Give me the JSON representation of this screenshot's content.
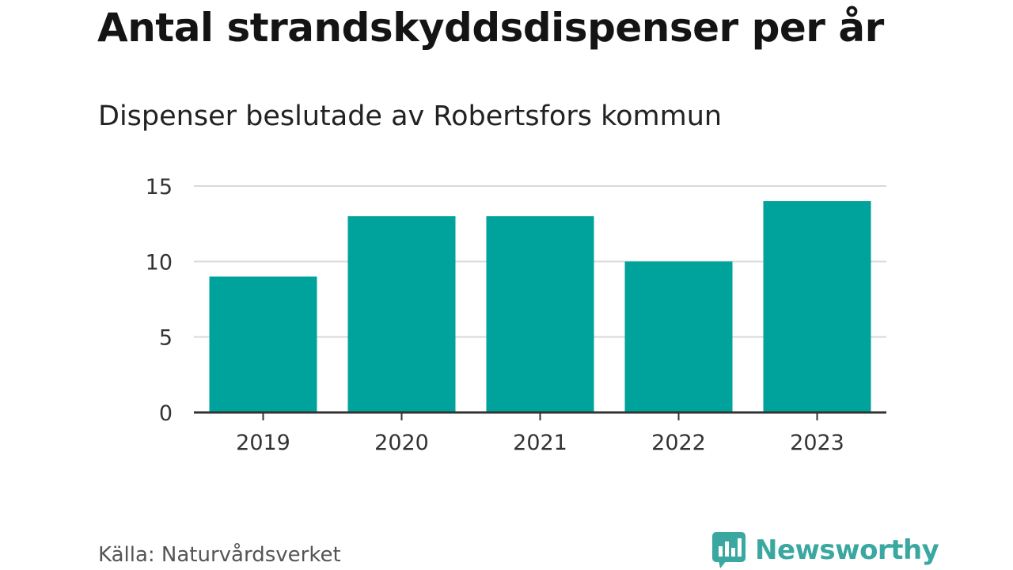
{
  "header": {
    "title": "Antal strandskyddsdispenser per år",
    "subtitle": "Dispenser beslutade av Robertsfors kommun"
  },
  "footer": {
    "source": "Källa: Naturvårdsverket",
    "brand": "Newsworthy",
    "brand_icon": "newsworthy-logo-icon"
  },
  "colors": {
    "bar": "#00a39b",
    "grid": "#d9d9d9",
    "axis": "#333333",
    "brand": "#3aa7a0"
  },
  "chart_data": {
    "type": "bar",
    "title": "Antal strandskyddsdispenser per år",
    "subtitle": "Dispenser beslutade av Robertsfors kommun",
    "categories": [
      "2019",
      "2020",
      "2021",
      "2022",
      "2023"
    ],
    "values": [
      9,
      13,
      13,
      10,
      14
    ],
    "xlabel": "",
    "ylabel": "",
    "ylim": [
      0,
      15
    ],
    "yticks": [
      0,
      5,
      10,
      15
    ],
    "grid": true,
    "legend": "none"
  }
}
